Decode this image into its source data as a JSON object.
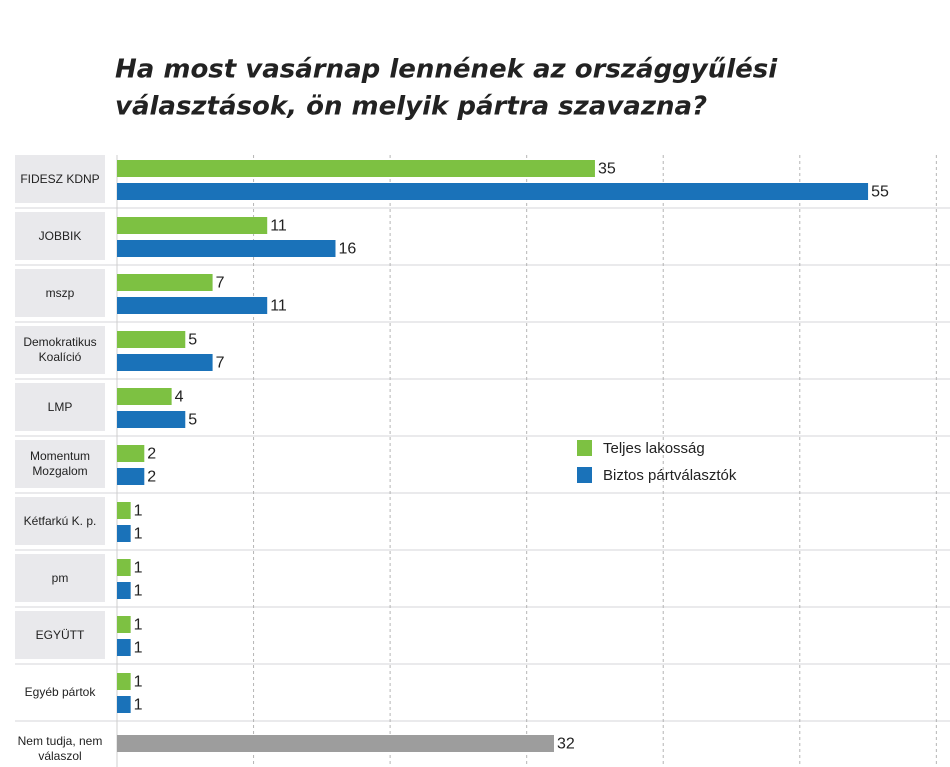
{
  "chart_data": {
    "type": "hbar",
    "title": [
      "Ha most vasárnap lennének az országgyűlési",
      "választások, ön melyik pártra szavazna?"
    ],
    "categories": [
      "FIDESZ KDNP",
      "JOBBIK",
      "mszp",
      "Demokratikus Koalíció",
      "LMP",
      "Momentum Mozgalom",
      "Kétfarkú K. p.",
      "pm",
      "EGYÜTT",
      "Egyéb pártok",
      "Nem tudja, nem válaszol"
    ],
    "series": [
      {
        "name": "Teljes lakosság",
        "color": "#7dc142",
        "values": [
          35,
          11,
          7,
          5,
          4,
          2,
          1,
          1,
          1,
          1,
          null
        ]
      },
      {
        "name": "Biztos pártválasztók",
        "color": "#1a72b9",
        "values": [
          55,
          16,
          11,
          7,
          5,
          2,
          1,
          1,
          1,
          1,
          null
        ]
      },
      {
        "color": "#9d9d9d",
        "values": [
          null,
          null,
          null,
          null,
          null,
          null,
          null,
          null,
          null,
          null,
          32
        ]
      }
    ],
    "xlim": [
      0,
      61
    ],
    "grid_lines": [
      10,
      20,
      30,
      40,
      50,
      60
    ],
    "legend": "middle-right"
  }
}
